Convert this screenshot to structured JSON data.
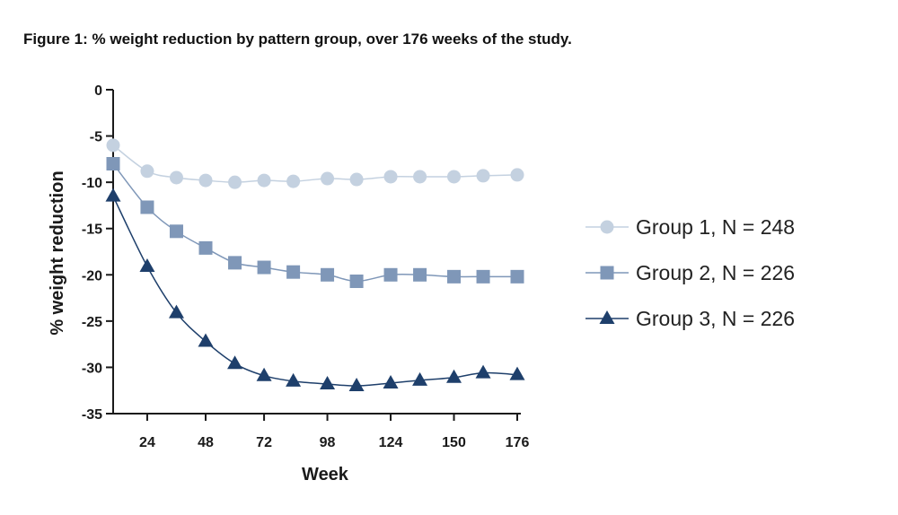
{
  "title": "Figure 1: % weight reduction by pattern group, over 176 weeks of the study.",
  "colors": {
    "group1": "#c4d1e0",
    "group2": "#7f97b8",
    "group3": "#1e3f6b",
    "axis": "#1a1a1a"
  },
  "chart_data": {
    "type": "line",
    "xlabel": "Week",
    "ylabel": "% weight reduction",
    "xlim": [
      10,
      176
    ],
    "ylim": [
      -35,
      0
    ],
    "xticks": [
      24,
      48,
      72,
      98,
      124,
      150,
      176
    ],
    "yticks": [
      0,
      -5,
      -10,
      -15,
      -20,
      -25,
      -30,
      -35
    ],
    "grid": false,
    "legend_position": "right",
    "x": [
      10,
      24,
      36,
      48,
      60,
      72,
      84,
      98,
      110,
      124,
      136,
      150,
      162,
      176
    ],
    "series": [
      {
        "name": "Group 1, N = 248",
        "marker": "circle",
        "color": "#c4d1e0",
        "values": [
          -6,
          -8.8,
          -9.5,
          -9.8,
          -10,
          -9.8,
          -9.9,
          -9.6,
          -9.7,
          -9.4,
          -9.4,
          -9.4,
          -9.3,
          -9.2
        ]
      },
      {
        "name": "Group 2, N = 226",
        "marker": "square",
        "color": "#7f97b8",
        "values": [
          -8,
          -12.7,
          -15.3,
          -17.1,
          -18.7,
          -19.2,
          -19.7,
          -20,
          -20.7,
          -20,
          -20,
          -20.2,
          -20.2,
          -20.2
        ]
      },
      {
        "name": "Group 3, N = 226",
        "marker": "triangle",
        "color": "#1e3f6b",
        "values": [
          -11.5,
          -19.1,
          -24.1,
          -27.2,
          -29.6,
          -30.9,
          -31.5,
          -31.8,
          -32,
          -31.7,
          -31.4,
          -31.1,
          -30.6,
          -30.8
        ]
      }
    ]
  }
}
